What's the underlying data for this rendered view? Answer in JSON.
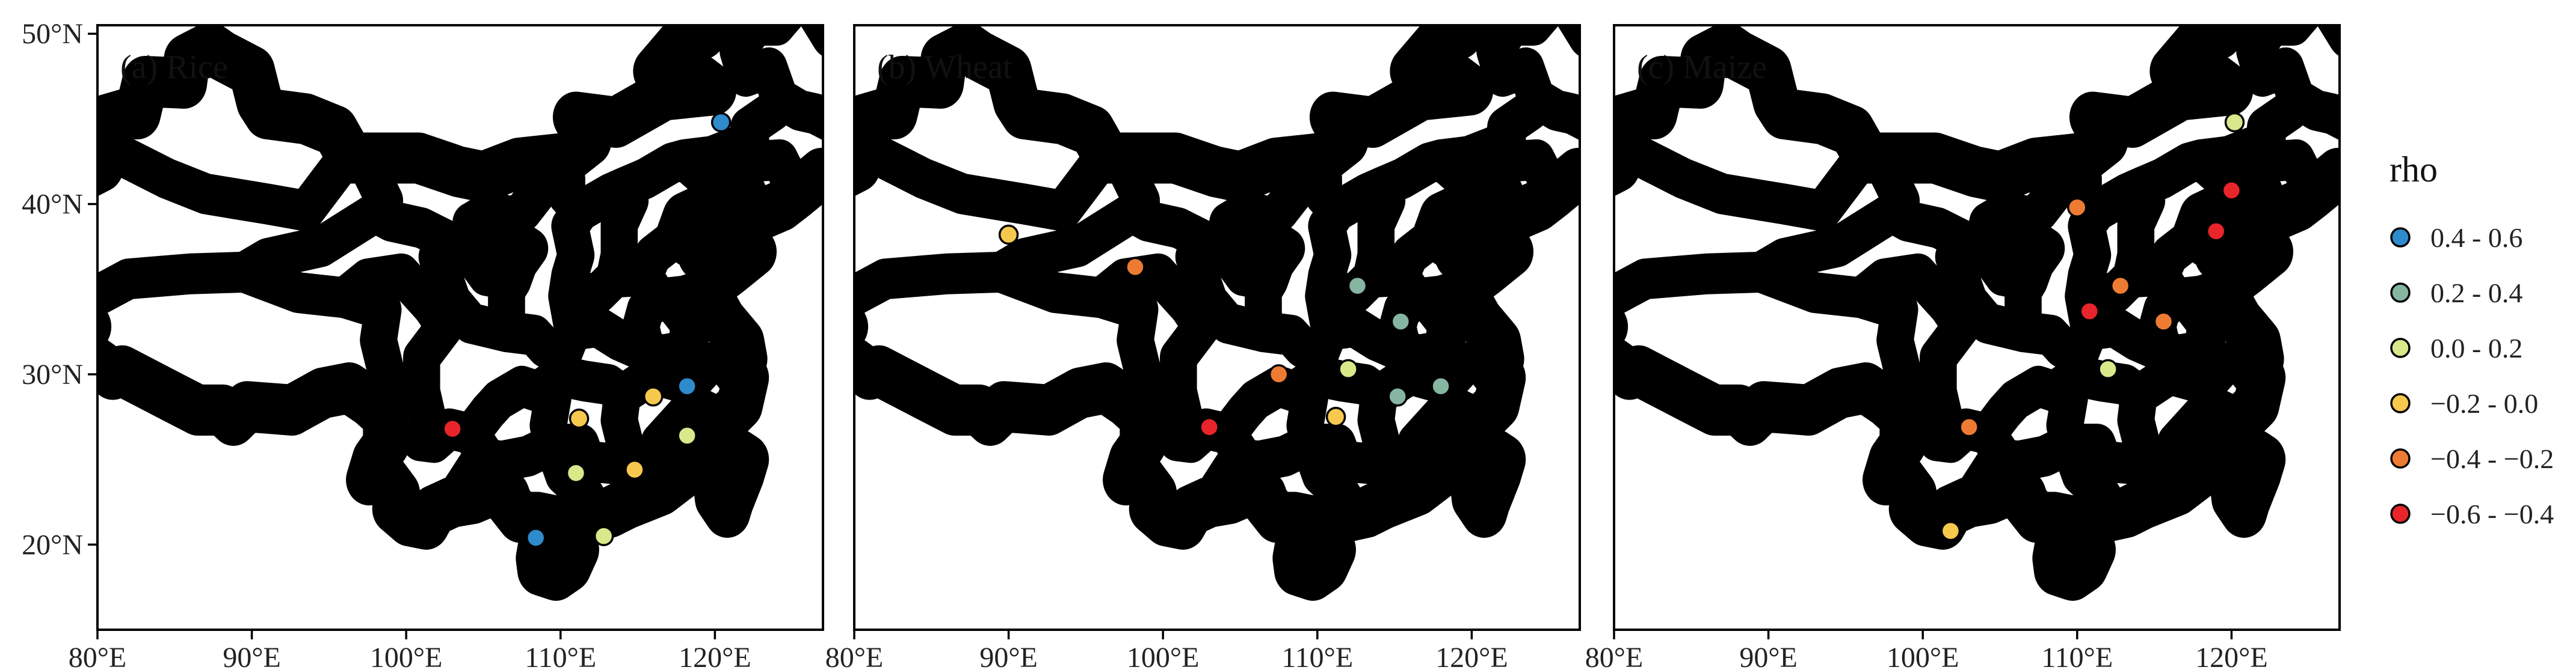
{
  "map": {
    "lon_ticks": [
      80,
      90,
      100,
      110,
      120
    ],
    "lon_tick_labels": [
      "80°E",
      "90°E",
      "100°E",
      "110°E",
      "120°E"
    ],
    "lat_ticks": [
      20,
      30,
      40,
      50
    ],
    "lat_tick_labels": [
      "20°N",
      "30°N",
      "40°N",
      "50°N"
    ],
    "extent": {
      "lon": [
        80,
        127
      ],
      "lat": [
        15,
        50.5
      ]
    }
  },
  "panels": [
    {
      "title": "(a) Rice",
      "sites": [
        {
          "lon": 120.4,
          "lat": 44.8,
          "class": "0.4 - 0.6"
        },
        {
          "lon": 103.0,
          "lat": 26.8,
          "class": "−0.6 - −0.4"
        },
        {
          "lon": 111.2,
          "lat": 27.4,
          "class": "−0.2 - 0.0"
        },
        {
          "lon": 116.0,
          "lat": 28.7,
          "class": "−0.2 - 0.0"
        },
        {
          "lon": 118.2,
          "lat": 29.3,
          "class": "0.4 - 0.6"
        },
        {
          "lon": 118.2,
          "lat": 26.4,
          "class": "0.0 - 0.2"
        },
        {
          "lon": 111.0,
          "lat": 24.2,
          "class": "0.0 - 0.2"
        },
        {
          "lon": 114.8,
          "lat": 24.4,
          "class": "−0.2 - 0.0"
        },
        {
          "lon": 108.4,
          "lat": 20.4,
          "class": "0.4 - 0.6"
        },
        {
          "lon": 112.8,
          "lat": 20.5,
          "class": "0.0 - 0.2"
        }
      ]
    },
    {
      "title": "(b) Wheat",
      "sites": [
        {
          "lon": 90.0,
          "lat": 38.2,
          "class": "−0.2 - 0.0"
        },
        {
          "lon": 98.2,
          "lat": 36.3,
          "class": "−0.4 - −0.2"
        },
        {
          "lon": 112.6,
          "lat": 35.2,
          "class": "0.2 - 0.4"
        },
        {
          "lon": 115.4,
          "lat": 33.1,
          "class": "0.2 - 0.4"
        },
        {
          "lon": 107.5,
          "lat": 30.0,
          "class": "−0.4 - −0.2"
        },
        {
          "lon": 112.0,
          "lat": 30.3,
          "class": "0.0 - 0.2"
        },
        {
          "lon": 115.2,
          "lat": 28.7,
          "class": "0.2 - 0.4"
        },
        {
          "lon": 118.0,
          "lat": 29.3,
          "class": "0.2 - 0.4"
        },
        {
          "lon": 103.0,
          "lat": 26.9,
          "class": "−0.6 - −0.4"
        },
        {
          "lon": 111.2,
          "lat": 27.5,
          "class": "−0.2 - 0.0"
        }
      ]
    },
    {
      "title": "(c) Maize",
      "sites": [
        {
          "lon": 120.2,
          "lat": 44.8,
          "class": "0.0 - 0.2"
        },
        {
          "lon": 120.0,
          "lat": 40.8,
          "class": "−0.6 - −0.4"
        },
        {
          "lon": 110.0,
          "lat": 39.8,
          "class": "−0.4 - −0.2"
        },
        {
          "lon": 119.0,
          "lat": 38.4,
          "class": "−0.6 - −0.4"
        },
        {
          "lon": 112.8,
          "lat": 35.2,
          "class": "−0.4 - −0.2"
        },
        {
          "lon": 110.8,
          "lat": 33.7,
          "class": "−0.6 - −0.4"
        },
        {
          "lon": 115.6,
          "lat": 33.1,
          "class": "−0.4 - −0.2"
        },
        {
          "lon": 112.0,
          "lat": 30.3,
          "class": "0.0 - 0.2"
        },
        {
          "lon": 103.0,
          "lat": 26.9,
          "class": "−0.4 - −0.2"
        },
        {
          "lon": 101.8,
          "lat": 20.8,
          "class": "−0.2 - 0.0"
        }
      ]
    }
  ],
  "legend": {
    "title": "rho",
    "items": [
      {
        "label": "0.4 - 0.6",
        "color": "#2E8BCC"
      },
      {
        "label": "0.2 - 0.4",
        "color": "#86B5A1"
      },
      {
        "label": "0.0 - 0.2",
        "color": "#D8E88A"
      },
      {
        "label": "−0.2 - 0.0",
        "color": "#F6C84E"
      },
      {
        "label": "−0.4 - −0.2",
        "color": "#EE7B33"
      },
      {
        "label": "−0.6 - −0.4",
        "color": "#E8252A"
      }
    ]
  }
}
